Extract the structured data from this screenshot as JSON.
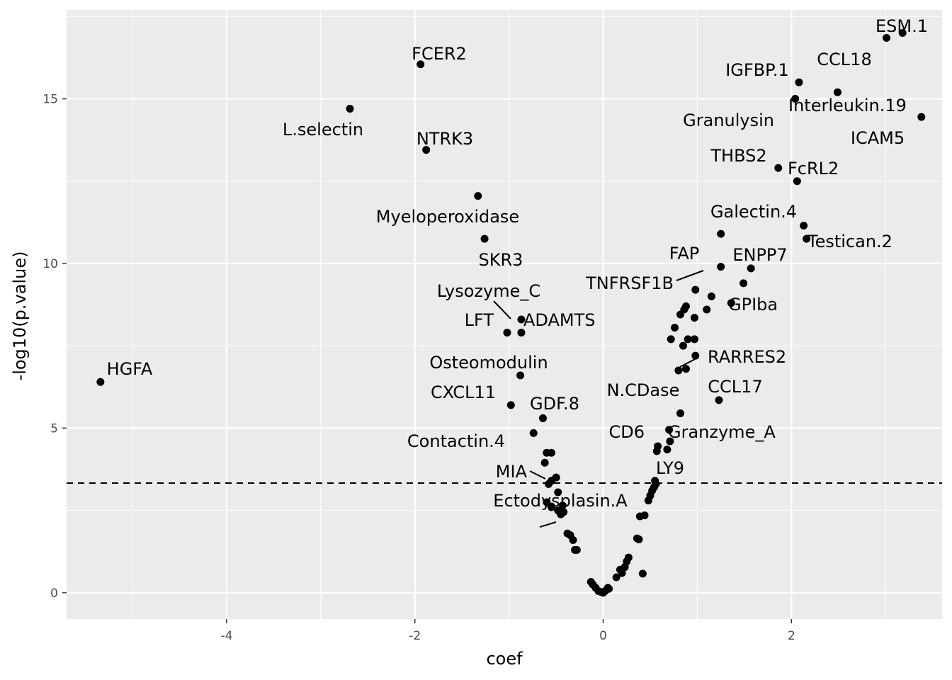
{
  "chart_data": {
    "type": "scatter",
    "xlabel": "coef",
    "ylabel": "-log10(p.value)",
    "xlim": [
      -5.7,
      3.6
    ],
    "ylim": [
      -0.8,
      17.7
    ],
    "x_ticks": [
      -4,
      -2,
      0,
      2
    ],
    "x_tick_labels": [
      "-4",
      "-2",
      "0",
      "2"
    ],
    "y_ticks": [
      0,
      5,
      10,
      15
    ],
    "y_tick_labels": [
      "0",
      "5",
      "10",
      "15"
    ],
    "grid": true,
    "background": "#ebebeb",
    "point_color": "#000000",
    "threshold_line": {
      "y": 3.33,
      "style": "dashed"
    },
    "labeled_points": [
      {
        "label": "ESM.1",
        "x": 3.18,
        "y": 17.0
      },
      {
        "label": "CCL18",
        "x": 3.01,
        "y": 16.85
      },
      {
        "label": "FCER2",
        "x": -1.94,
        "y": 16.05
      },
      {
        "label": "IGFBP.1",
        "x": 2.08,
        "y": 15.5
      },
      {
        "label": "Interleukin.19",
        "x": 2.49,
        "y": 15.2
      },
      {
        "label": "Granulysin",
        "x": 2.04,
        "y": 15.0
      },
      {
        "label": "L.selectin",
        "x": -2.69,
        "y": 14.7
      },
      {
        "label": "ICAM5",
        "x": 3.38,
        "y": 14.45
      },
      {
        "label": "NTRK3",
        "x": -1.88,
        "y": 13.45
      },
      {
        "label": "THBS2",
        "x": 1.86,
        "y": 12.9
      },
      {
        "label": "FcRL2",
        "x": 2.06,
        "y": 12.5
      },
      {
        "label": "Myeloperoxidase",
        "x": -1.33,
        "y": 12.05
      },
      {
        "label": "Galectin.4",
        "x": 2.13,
        "y": 11.15
      },
      {
        "label": "Testican.2",
        "x": 2.16,
        "y": 10.75
      },
      {
        "label": "SKR3",
        "x": -1.26,
        "y": 10.75
      },
      {
        "label": "FAP",
        "x": 1.25,
        "y": 9.9
      },
      {
        "label": "ENPP7",
        "x": 1.57,
        "y": 9.85
      },
      {
        "label": "TNFRSF1B",
        "x": 0.98,
        "y": 9.2
      },
      {
        "label": "GPIba",
        "x": 1.36,
        "y": 8.8
      },
      {
        "label": "Lysozyme_C",
        "x": -0.87,
        "y": 8.3
      },
      {
        "label": "LFT",
        "x": -1.02,
        "y": 7.9
      },
      {
        "label": "ADAMTS",
        "x": -0.87,
        "y": 7.9
      },
      {
        "label": "RARRES2",
        "x": 0.88,
        "y": 6.8
      },
      {
        "label": "Osteomodulin",
        "x": -0.88,
        "y": 6.6
      },
      {
        "label": "HGFA",
        "x": -5.34,
        "y": 6.4
      },
      {
        "label": "CCL17",
        "x": 1.23,
        "y": 5.85
      },
      {
        "label": "N.CDase",
        "x": 0.82,
        "y": 5.45
      },
      {
        "label": "CXCL11",
        "x": -0.98,
        "y": 5.7
      },
      {
        "label": "GDF.8",
        "x": -0.64,
        "y": 5.3
      },
      {
        "label": "Contactin.4",
        "x": -0.74,
        "y": 4.85
      },
      {
        "label": "CD6",
        "x": 0.7,
        "y": 4.95
      },
      {
        "label": "Granzyme_A",
        "x": 0.71,
        "y": 4.6
      },
      {
        "label": "LY9",
        "x": 0.55,
        "y": 3.4
      },
      {
        "label": "MIA",
        "x": -0.5,
        "y": 3.5
      },
      {
        "label": "Ectodysplasin.A",
        "x": -0.55,
        "y": 2.6
      }
    ],
    "points": [
      [
        -0.05,
        0.05
      ],
      [
        -0.02,
        0.02
      ],
      [
        0.0,
        0.0
      ],
      [
        0.02,
        0.05
      ],
      [
        0.06,
        0.12
      ],
      [
        -0.08,
        0.15
      ],
      [
        -0.11,
        0.25
      ],
      [
        -0.13,
        0.33
      ],
      [
        0.05,
        0.15
      ],
      [
        0.14,
        0.47
      ],
      [
        0.2,
        0.6
      ],
      [
        0.18,
        0.7
      ],
      [
        0.23,
        0.78
      ],
      [
        0.25,
        0.95
      ],
      [
        0.27,
        1.07
      ],
      [
        0.42,
        0.58
      ],
      [
        0.36,
        1.65
      ],
      [
        0.38,
        1.62
      ],
      [
        0.39,
        2.32
      ],
      [
        0.44,
        2.35
      ],
      [
        0.48,
        2.8
      ],
      [
        0.5,
        2.95
      ],
      [
        0.52,
        3.1
      ],
      [
        0.54,
        3.2
      ],
      [
        0.56,
        3.3
      ],
      [
        0.57,
        4.3
      ],
      [
        0.58,
        4.45
      ],
      [
        0.68,
        4.35
      ],
      [
        -0.28,
        1.3
      ],
      [
        -0.3,
        1.3
      ],
      [
        -0.32,
        1.6
      ],
      [
        -0.35,
        1.75
      ],
      [
        -0.38,
        1.8
      ],
      [
        -0.42,
        2.45
      ],
      [
        -0.45,
        2.38
      ],
      [
        -0.48,
        2.5
      ],
      [
        -0.43,
        2.65
      ],
      [
        -0.48,
        3.05
      ],
      [
        -0.5,
        3.5
      ],
      [
        -0.55,
        3.4
      ],
      [
        -0.58,
        3.3
      ],
      [
        -0.6,
        2.75
      ],
      [
        -0.55,
        2.62
      ],
      [
        -0.62,
        3.95
      ],
      [
        -0.6,
        4.25
      ],
      [
        -0.55,
        4.25
      ],
      [
        0.72,
        7.7
      ],
      [
        0.76,
        8.05
      ],
      [
        0.82,
        8.45
      ],
      [
        0.86,
        8.6
      ],
      [
        0.88,
        8.7
      ],
      [
        0.97,
        8.35
      ],
      [
        1.1,
        8.6
      ],
      [
        1.15,
        9.0
      ],
      [
        0.85,
        7.5
      ],
      [
        0.9,
        7.7
      ],
      [
        0.97,
        7.7
      ],
      [
        0.98,
        7.2
      ],
      [
        0.8,
        6.75
      ],
      [
        1.25,
        10.9
      ],
      [
        1.49,
        9.4
      ]
    ]
  }
}
